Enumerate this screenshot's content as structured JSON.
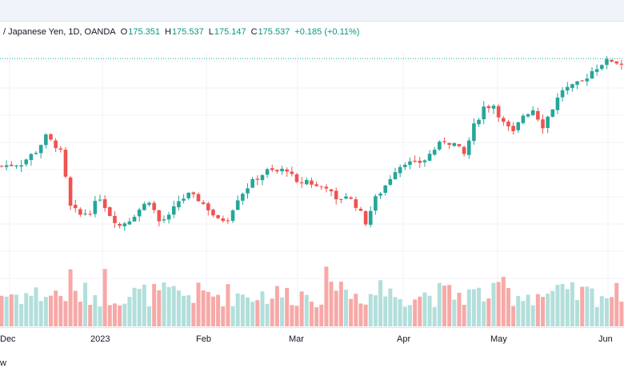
{
  "legend": {
    "symbol": "/ Japanese Yen, 1D, OANDA",
    "o_label": "O",
    "o_value": "175.351",
    "h_label": "H",
    "h_value": "175.537",
    "l_label": "L",
    "l_value": "175.147",
    "c_label": "C",
    "c_value": "175.537",
    "change": "+0.185 (+0.11%)"
  },
  "footer": {
    "partial_text": "w"
  },
  "colors": {
    "up": "#26a69a",
    "down": "#ef5350",
    "vol_up": "#b2dfdb",
    "vol_down": "#f7a9a7",
    "grid": "#f0f3fa",
    "price_line": "#26a69a"
  },
  "chart_data": {
    "type": "candlestick",
    "instrument": "/ Japanese Yen",
    "timeframe": "1D",
    "source": "OANDA",
    "xaxis_ticks": [
      "Dec",
      "2023",
      "Feb",
      "Mar",
      "Apr",
      "May",
      "Jun"
    ],
    "last_close": 175.537,
    "ylim": [
      146.6,
      175.9
    ],
    "bar_count": 128,
    "grid": true
  }
}
